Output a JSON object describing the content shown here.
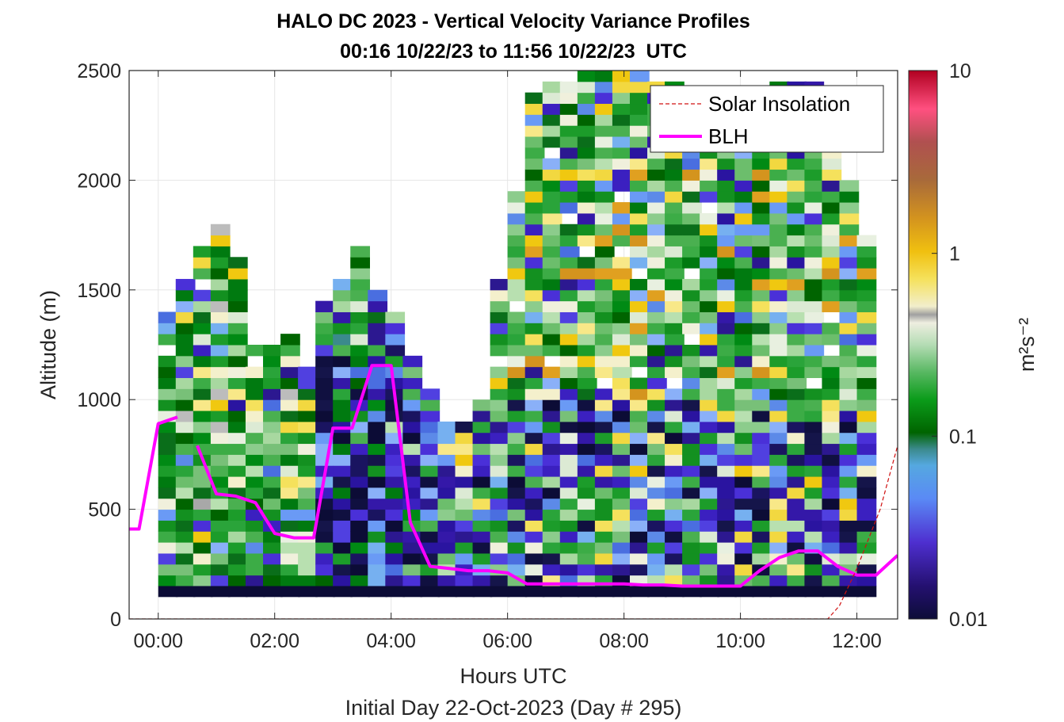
{
  "chart_data": {
    "type": "heatmap",
    "title": "HALO DC 2023 - Vertical Velocity Variance Profiles",
    "subtitle": "00:16 10/22/23 to 11:56 10/22/23  UTC",
    "xlabel": "Hours UTC",
    "ylabel": "Altitude (m)",
    "footer": "Initial Day 22-Oct-2023 (Day # 295)",
    "xlim": [
      -0.5,
      12.7
    ],
    "ylim": [
      0,
      2500
    ],
    "xticks": [
      0,
      2,
      4,
      6,
      8,
      10,
      12
    ],
    "xtick_labels": [
      "00:00",
      "02:00",
      "04:00",
      "06:00",
      "08:00",
      "10:00",
      "12:00"
    ],
    "yticks": [
      0,
      500,
      1000,
      1500,
      2000,
      2500
    ],
    "ytick_labels": [
      "0",
      "500",
      "1000",
      "1500",
      "2000",
      "2500"
    ],
    "colorbar": {
      "label": "m²s⁻²",
      "scale": "log",
      "range": [
        0.01,
        10
      ],
      "ticks": [
        "0.01",
        "0.1",
        "1",
        "10"
      ]
    },
    "grid": true,
    "legend": {
      "position": "top-right",
      "entries": [
        {
          "label": "Solar Insolation",
          "color": "#d01010",
          "style": "dashed"
        },
        {
          "label": "BLH",
          "color": "#ff00ff",
          "style": "solid"
        }
      ]
    },
    "series": [
      {
        "name": "BLH",
        "color": "#ff00ff",
        "x": [
          -0.5,
          -0.33,
          0.0,
          0.33,
          null,
          0.67,
          1.0,
          1.33,
          1.67,
          2.0,
          2.33,
          2.67,
          3.0,
          3.33,
          3.67,
          4.0,
          4.33,
          4.67,
          5.0,
          5.33,
          5.67,
          6.0,
          6.33,
          6.67,
          7.0,
          7.33,
          7.67,
          8.0,
          8.33,
          8.67,
          9.0,
          9.33,
          9.67,
          10.0,
          10.33,
          10.67,
          11.0,
          11.33,
          11.67,
          12.0,
          12.33,
          12.7
        ],
        "y": [
          410,
          410,
          890,
          920,
          null,
          790,
          570,
          560,
          530,
          390,
          370,
          370,
          870,
          870,
          1155,
          1155,
          440,
          240,
          230,
          220,
          220,
          210,
          160,
          160,
          160,
          160,
          160,
          160,
          155,
          155,
          150,
          150,
          150,
          150,
          220,
          280,
          310,
          310,
          240,
          200,
          200,
          290
        ]
      },
      {
        "name": "Solar Insolation",
        "color": "#d01010",
        "x": [
          -0.5,
          11.5,
          11.7,
          12.0,
          12.4,
          12.7
        ],
        "y": [
          0,
          0,
          60,
          230,
          500,
          790
        ]
      }
    ],
    "colors": {
      "axes_text": "#262626",
      "grid": "#e6e6e6",
      "blh": "#ff00ff",
      "solar": "#d01010"
    }
  }
}
